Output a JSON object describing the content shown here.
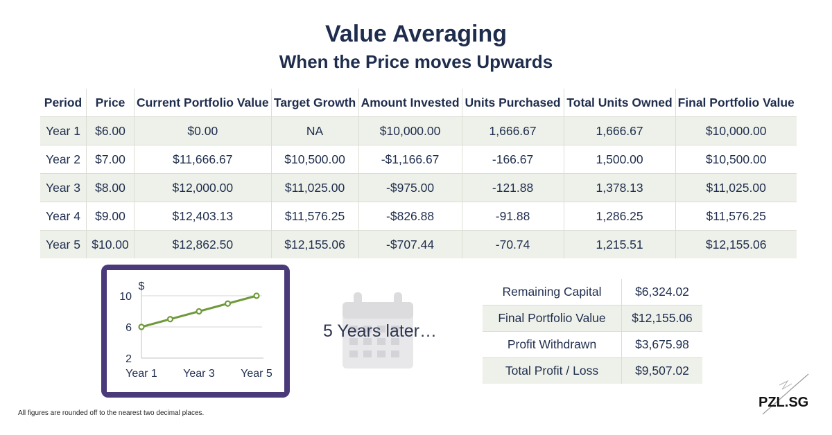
{
  "header": {
    "title": "Value Averaging",
    "subtitle": "When the Price moves Upwards"
  },
  "table": {
    "columns": [
      "Period",
      "Price",
      "Current Portfolio Value",
      "Target Growth",
      "Amount Invested",
      "Units Purchased",
      "Total Units Owned",
      "Final Portfolio Value"
    ],
    "rows": [
      [
        "Year 1",
        "$6.00",
        "$0.00",
        "NA",
        "$10,000.00",
        "1,666.67",
        "1,666.67",
        "$10,000.00"
      ],
      [
        "Year 2",
        "$7.00",
        "$11,666.67",
        "$10,500.00",
        "-$1,166.67",
        "-166.67",
        "1,500.00",
        "$10,500.00"
      ],
      [
        "Year 3",
        "$8.00",
        "$12,000.00",
        "$11,025.00",
        "-$975.00",
        "-121.88",
        "1,378.13",
        "$11,025.00"
      ],
      [
        "Year 4",
        "$9.00",
        "$12,403.13",
        "$11,576.25",
        "-$826.88",
        "-91.88",
        "1,286.25",
        "$11,576.25"
      ],
      [
        "Year 5",
        "$10.00",
        "$12,862.50",
        "$12,155.06",
        "-$707.44",
        "-70.74",
        "1,215.51",
        "$12,155.06"
      ]
    ]
  },
  "chart_data": {
    "type": "line",
    "x": [
      "Year 1",
      "Year 2",
      "Year 3",
      "Year 4",
      "Year 5"
    ],
    "x_tick_labels": [
      "Year 1",
      "Year 3",
      "Year 5"
    ],
    "series": [
      {
        "values": [
          6,
          7,
          8,
          9,
          10
        ],
        "color": "#6f9a3b"
      }
    ],
    "ylabel": "$",
    "ylim": [
      2,
      10
    ],
    "y_ticks": [
      "2",
      "6",
      "10"
    ],
    "grid": true
  },
  "interlude": {
    "text": "5 Years later…",
    "icon": "calendar-icon"
  },
  "summary": {
    "rows": [
      {
        "label": "Remaining Capital",
        "value": "$6,324.02"
      },
      {
        "label": "Final Portfolio Value",
        "value": "$12,155.06"
      },
      {
        "label": "Profit Withdrawn",
        "value": "$3,675.98"
      },
      {
        "label": "Total Profit / Loss",
        "value": "$9,507.02"
      }
    ]
  },
  "footnote": "All figures are rounded off to the nearest two decimal places.",
  "brand": {
    "name": "PZL.SG"
  },
  "colors": {
    "accent_green": "#6f9a3b",
    "frame_purple": "#4a3a7a",
    "text_navy": "#1f2d4d",
    "row_shade": "#eef1e9"
  }
}
